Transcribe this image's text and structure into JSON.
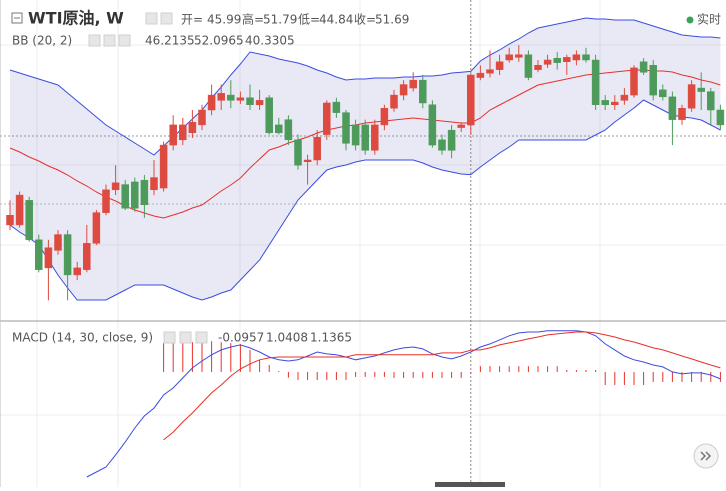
{
  "chart_data": [
    {
      "type": "candlestick",
      "title": "WTI原油, W",
      "ohlc_labels": [
        "开=",
        "高=",
        "低=",
        "收="
      ],
      "realtime": "实时",
      "up_color": "#dd4a3f",
      "down_color": "#4d9a5b",
      "ylim": [
        23.76,
        60.24
      ],
      "highlight": 48,
      "open": [
        34.6,
        34.6,
        37.4,
        32.9,
        29.7,
        31.7,
        33.5,
        28.9,
        29.5,
        32.5,
        36.0,
        38.6,
        39.2,
        39.5,
        39.7,
        38.6,
        38.8,
        43.7,
        44.3,
        45.1,
        46.0,
        47.7,
        48.8,
        49.4,
        48.8,
        49.1,
        48.3,
        49.1,
        46.0,
        46.6,
        44.3,
        41.8,
        42.0,
        44.9,
        48.6,
        47.4,
        46.0,
        46.0,
        43.1,
        46.0,
        47.9,
        49.4,
        50.2,
        51.1,
        48.3,
        44.3,
        45.4,
        45.7,
        45.99,
        51.4,
        51.9,
        52.3,
        53.4,
        53.7,
        54.0,
        52.3,
        52.9,
        53.6,
        53.2,
        53.4,
        54.0,
        53.4,
        48.8,
        48.3,
        48.8,
        49.4,
        53.2,
        52.8,
        50.0,
        49.2,
        46.6,
        47.9,
        50.2,
        49.8,
        47.7
      ],
      "high": [
        37.4,
        38.4,
        37.8,
        33.5,
        32.9,
        34.0,
        34.0,
        30.4,
        34.6,
        36.3,
        39.2,
        41.4,
        39.7,
        40.0,
        40.3,
        42.0,
        44.1,
        47.1,
        46.8,
        47.7,
        48.3,
        50.6,
        50.6,
        51.1,
        49.8,
        50.6,
        50.0,
        49.4,
        46.8,
        47.1,
        44.9,
        42.6,
        45.4,
        48.8,
        49.1,
        47.7,
        46.6,
        46.6,
        46.6,
        48.3,
        50.0,
        51.1,
        52.0,
        51.7,
        48.8,
        44.9,
        46.0,
        46.3,
        51.79,
        52.8,
        54.5,
        54.0,
        54.8,
        55.1,
        54.5,
        53.4,
        54.0,
        54.3,
        54.0,
        54.5,
        54.8,
        54.0,
        49.4,
        49.4,
        50.2,
        52.8,
        53.6,
        53.4,
        50.6,
        49.8,
        48.3,
        51.1,
        52.0,
        50.2,
        48.3
      ],
      "low": [
        34.0,
        34.3,
        32.7,
        29.2,
        26.0,
        31.2,
        26.0,
        28.3,
        29.2,
        32.3,
        35.7,
        38.0,
        36.3,
        36.1,
        35.4,
        38.0,
        38.4,
        43.1,
        43.7,
        44.5,
        45.4,
        47.1,
        47.7,
        47.9,
        48.4,
        47.7,
        47.7,
        44.9,
        44.9,
        43.7,
        40.9,
        39.2,
        41.4,
        44.3,
        46.8,
        43.1,
        43.1,
        42.6,
        42.6,
        45.4,
        47.5,
        48.8,
        49.8,
        47.9,
        43.4,
        42.6,
        42.2,
        45.2,
        44.84,
        51.1,
        51.4,
        51.7,
        53.1,
        53.2,
        51.1,
        52.0,
        52.5,
        52.3,
        51.7,
        52.8,
        53.1,
        47.7,
        47.7,
        47.7,
        48.3,
        49.1,
        51.7,
        48.8,
        48.8,
        43.7,
        46.0,
        47.5,
        47.7,
        46.0,
        45.4
      ],
      "close": [
        35.7,
        38.0,
        32.9,
        29.5,
        32.0,
        33.5,
        28.9,
        29.7,
        32.5,
        36.0,
        38.6,
        39.4,
        36.5,
        36.5,
        36.9,
        40.0,
        43.7,
        46.0,
        46.0,
        46.3,
        47.7,
        49.4,
        49.6,
        48.8,
        49.1,
        48.3,
        48.8,
        45.1,
        45.1,
        44.3,
        41.4,
        42.0,
        44.6,
        48.5,
        47.4,
        43.9,
        43.7,
        43.1,
        46.0,
        47.9,
        49.4,
        50.6,
        51.1,
        48.5,
        43.7,
        43.1,
        43.1,
        46.0,
        51.69,
        51.9,
        52.3,
        53.2,
        54.0,
        54.0,
        51.4,
        52.8,
        53.4,
        53.1,
        53.7,
        54.0,
        53.4,
        48.3,
        48.3,
        48.6,
        49.4,
        52.5,
        52.0,
        49.4,
        49.2,
        46.6,
        47.9,
        50.6,
        49.8,
        47.7,
        46.0
      ],
      "bands": {
        "label": "BB (20, 2)",
        "band_color": "#3b4ce0",
        "middle_color": "#e8302a",
        "fill": "rgba(120,120,200,0.16)",
        "upper": [
          52.26,
          51.92,
          51.58,
          51.23,
          50.89,
          50.55,
          49.64,
          48.73,
          47.81,
          46.9,
          45.99,
          45.31,
          44.62,
          43.94,
          43.25,
          42.57,
          43.6,
          44.62,
          45.65,
          46.67,
          47.7,
          49.07,
          50.32,
          51.69,
          52.94,
          54.31,
          54.08,
          53.86,
          53.51,
          53.29,
          53.06,
          52.72,
          52.26,
          51.92,
          51.46,
          51.12,
          51.23,
          51.23,
          51.35,
          51.35,
          51.35,
          51.46,
          51.46,
          51.58,
          51.58,
          51.69,
          51.92,
          52.0,
          52.0965,
          53.29,
          53.97,
          54.54,
          55.22,
          55.79,
          56.48,
          57.05,
          57.28,
          57.5,
          57.73,
          57.96,
          58.19,
          58.07,
          58.07,
          57.96,
          57.96,
          57.96,
          57.62,
          57.28,
          56.93,
          56.59,
          56.25,
          56.14,
          56.02,
          56.02,
          55.91
        ],
        "middle": [
          43.37,
          42.91,
          42.34,
          41.89,
          41.32,
          40.86,
          40.29,
          39.61,
          39.04,
          38.35,
          37.78,
          37.33,
          36.76,
          36.3,
          35.96,
          35.62,
          35.39,
          35.73,
          36.07,
          36.53,
          36.87,
          37.67,
          38.47,
          39.15,
          39.95,
          41.09,
          42.11,
          43.14,
          43.48,
          43.94,
          44.28,
          44.62,
          45.08,
          45.42,
          45.65,
          45.88,
          45.99,
          46.22,
          46.33,
          46.45,
          46.56,
          46.67,
          46.79,
          46.67,
          46.56,
          46.45,
          46.33,
          46.22,
          46.2135,
          46.79,
          47.7,
          48.27,
          48.84,
          49.41,
          49.98,
          50.55,
          50.78,
          51.01,
          51.23,
          51.46,
          51.69,
          51.8,
          51.92,
          52.03,
          52.15,
          52.26,
          52.26,
          52.15,
          52.15,
          52.03,
          51.69,
          51.46,
          51.12,
          50.89,
          50.55
        ],
        "lower": [
          34.59,
          33.79,
          33.11,
          32.31,
          30.6,
          28.89,
          27.41,
          26.04,
          26.04,
          26.04,
          26.04,
          26.61,
          27.18,
          27.75,
          27.75,
          27.75,
          27.75,
          27.29,
          26.84,
          26.38,
          26.04,
          26.38,
          26.84,
          27.18,
          28.32,
          29.46,
          30.6,
          32.31,
          34.02,
          35.73,
          37.44,
          38.58,
          39.72,
          40.86,
          41.2,
          41.43,
          41.77,
          42.0,
          42.0,
          42.0,
          42.0,
          42.0,
          42.0,
          41.66,
          41.2,
          40.86,
          40.63,
          40.4,
          40.3305,
          41.2,
          42.0,
          42.8,
          43.48,
          44.28,
          44.28,
          44.28,
          44.28,
          44.28,
          44.28,
          44.28,
          44.28,
          44.85,
          45.42,
          46.33,
          47.13,
          47.93,
          48.84,
          48.27,
          47.7,
          47.13,
          46.9,
          46.79,
          46.56,
          45.99,
          45.42
        ]
      }
    },
    {
      "type": "macd",
      "label": "MACD (14, 30, close, 9)",
      "ylim": [
        -5.99,
        2.6
      ],
      "highlight": 48,
      "macd_color": "#3b4ce0",
      "signal_color": "#e8302a",
      "histogram_color": "#e8302a",
      "histogram": [
        null,
        null,
        null,
        null,
        null,
        null,
        null,
        null,
        null,
        null,
        null,
        null,
        null,
        null,
        null,
        null,
        1.5,
        1.6,
        1.6,
        1.55,
        1.55,
        1.6,
        1.55,
        1.5,
        1.45,
        1.15,
        0.63,
        0.36,
        0.05,
        -0.3,
        -0.42,
        -0.42,
        -0.42,
        -0.42,
        -0.42,
        -0.42,
        -0.26,
        -0.26,
        -0.26,
        -0.26,
        -0.31,
        -0.31,
        -0.31,
        -0.31,
        -0.31,
        -0.31,
        -0.31,
        -0.31,
        -0.0957,
        0.3,
        0.3,
        0.3,
        0.3,
        0.3,
        0.3,
        0.3,
        0.3,
        0.3,
        0.1,
        0.1,
        0.1,
        0.1,
        -0.68,
        -0.68,
        -0.68,
        -0.68,
        -0.68,
        -0.52,
        -0.52,
        -0.52,
        -0.52,
        -0.52,
        -0.52,
        -0.52,
        -0.52
      ],
      "macd": [
        null,
        null,
        null,
        null,
        null,
        null,
        null,
        null,
        -5.47,
        -5.21,
        -4.95,
        -4.32,
        -3.65,
        -2.92,
        -2.29,
        -1.88,
        -1.2,
        -0.83,
        -0.31,
        0.21,
        0.57,
        0.89,
        1.15,
        1.3,
        1.41,
        1.25,
        1.04,
        0.78,
        0.63,
        0.57,
        0.63,
        0.83,
        1.04,
        0.94,
        0.89,
        0.78,
        0.63,
        0.73,
        0.83,
        0.99,
        1.15,
        1.25,
        1.3,
        1.2,
        0.94,
        0.78,
        0.68,
        0.83,
        1.0408,
        1.3,
        1.46,
        1.67,
        1.88,
        2.03,
        2.08,
        2.08,
        2.14,
        2.14,
        2.14,
        2.14,
        2.08,
        1.88,
        1.46,
        1.15,
        0.83,
        0.63,
        0.52,
        0.36,
        0.26,
        0.0,
        -0.1,
        -0.05,
        -0.05,
        -0.16,
        -0.36
      ],
      "signal": [
        null,
        null,
        null,
        null,
        null,
        null,
        null,
        null,
        null,
        null,
        null,
        null,
        null,
        null,
        null,
        null,
        -3.54,
        -3.13,
        -2.6,
        -2.14,
        -1.61,
        -1.09,
        -0.68,
        -0.21,
        0.16,
        0.42,
        0.63,
        0.73,
        0.78,
        0.78,
        0.78,
        0.78,
        0.78,
        0.78,
        0.78,
        0.78,
        0.89,
        0.89,
        0.89,
        0.89,
        0.89,
        0.89,
        0.89,
        0.89,
        0.89,
        0.99,
        0.99,
        0.99,
        1.1365,
        1.15,
        1.25,
        1.41,
        1.51,
        1.61,
        1.72,
        1.82,
        1.93,
        1.98,
        2.03,
        2.08,
        2.08,
        2.03,
        1.93,
        1.82,
        1.67,
        1.56,
        1.41,
        1.25,
        1.15,
        0.99,
        0.83,
        0.68,
        0.52,
        0.36,
        0.21
      ]
    }
  ]
}
